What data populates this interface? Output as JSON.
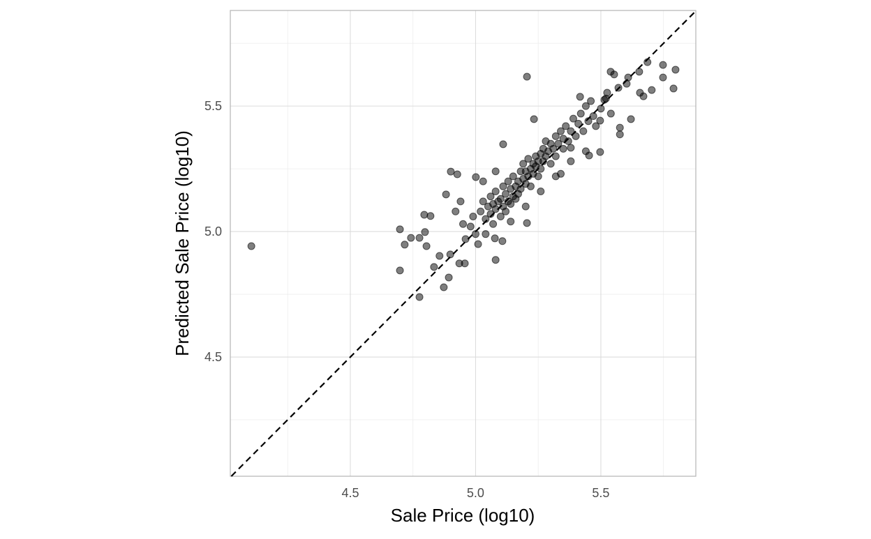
{
  "chart_data": {
    "type": "scatter",
    "x_label": "Sale Price (log10)",
    "y_label": "Predicted Sale Price (log10)",
    "xlim": [
      4.021,
      5.879
    ],
    "ylim": [
      4.025,
      5.881
    ],
    "xticks": [
      4.5,
      {
        "value": 5,
        "label": "5.0"
      },
      5.5
    ],
    "yticks": [
      4.5,
      {
        "value": 5,
        "label": "5.0"
      },
      5.5
    ],
    "x_minor_grid": [
      4.25,
      4.75,
      5.25,
      5.75
    ],
    "y_minor_grid": [
      4.25,
      4.75,
      5.25,
      5.75
    ],
    "grid": true,
    "diagonal": true,
    "series": [
      {
        "color": "#000000",
        "x": [
          4.105,
          5.205,
          4.698,
          4.698,
          4.776,
          4.873,
          4.893,
          4.795,
          4.82,
          4.882,
          4.901,
          4.927,
          4.717,
          4.742,
          4.776,
          4.798,
          4.804,
          4.834,
          4.856,
          4.899,
          4.935,
          4.957,
          5.08,
          5.107,
          5.077,
          5.205,
          5.001,
          5.11,
          5.233,
          5.417,
          5.748,
          5.798,
          5.79,
          5.748,
          5.686,
          5.653,
          5.609,
          5.539,
          5.553,
          5.67,
          5.703,
          5.656,
          5.62,
          5.576,
          5.576,
          5.497,
          5.497,
          5.514,
          5.525,
          5.57,
          5.603,
          5.453,
          5.38,
          5.02,
          5.03,
          5.04,
          5.05,
          5.06,
          5.06,
          5.07,
          5.08,
          5.08,
          5.09,
          5.1,
          5.1,
          5.11,
          5.11,
          5.12,
          5.12,
          5.13,
          5.13,
          5.14,
          5.14,
          5.15,
          5.15,
          5.16,
          5.16,
          5.17,
          5.17,
          5.18,
          5.18,
          5.19,
          5.19,
          5.2,
          5.2,
          5.21,
          5.21,
          5.22,
          5.22,
          5.23,
          5.23,
          5.24,
          5.24,
          5.25,
          5.25,
          5.26,
          5.26,
          5.27,
          5.27,
          5.28,
          5.28,
          5.29,
          5.3,
          5.3,
          5.31,
          5.32,
          5.32,
          5.33,
          5.34,
          5.35,
          5.35,
          5.36,
          5.37,
          5.38,
          5.39,
          5.4,
          5.41,
          5.42,
          5.43,
          5.44,
          5.45,
          5.46,
          5.47,
          5.48,
          5.5,
          5.52,
          5.54,
          4.98,
          4.96,
          4.99,
          5.0,
          4.95,
          5.01,
          5.04,
          5.07,
          5.14,
          5.2,
          5.26,
          5.32,
          5.38,
          5.03,
          5.08,
          4.92,
          4.94,
          5.34,
          5.44
        ],
        "y": [
          4.942,
          5.617,
          5.009,
          4.845,
          4.739,
          4.778,
          4.817,
          5.067,
          5.062,
          5.148,
          5.239,
          5.228,
          4.948,
          4.975,
          4.975,
          4.998,
          4.942,
          4.859,
          4.903,
          4.909,
          4.873,
          4.873,
          4.887,
          4.962,
          4.973,
          5.034,
          5.217,
          5.348,
          5.448,
          5.537,
          5.664,
          5.645,
          5.57,
          5.614,
          5.675,
          5.637,
          5.614,
          5.637,
          5.626,
          5.539,
          5.564,
          5.553,
          5.448,
          5.414,
          5.387,
          5.317,
          5.442,
          5.525,
          5.553,
          5.573,
          5.589,
          5.303,
          5.334,
          5.08,
          5.12,
          5.05,
          5.1,
          5.14,
          5.07,
          5.11,
          5.09,
          5.16,
          5.12,
          5.06,
          5.13,
          5.1,
          5.18,
          5.15,
          5.08,
          5.12,
          5.2,
          5.17,
          5.11,
          5.14,
          5.22,
          5.18,
          5.13,
          5.2,
          5.15,
          5.24,
          5.17,
          5.21,
          5.27,
          5.19,
          5.24,
          5.22,
          5.29,
          5.25,
          5.18,
          5.27,
          5.23,
          5.3,
          5.26,
          5.28,
          5.22,
          5.31,
          5.25,
          5.33,
          5.28,
          5.3,
          5.36,
          5.32,
          5.27,
          5.35,
          5.33,
          5.38,
          5.3,
          5.35,
          5.4,
          5.33,
          5.37,
          5.42,
          5.36,
          5.4,
          5.45,
          5.38,
          5.43,
          5.47,
          5.4,
          5.5,
          5.44,
          5.52,
          5.46,
          5.42,
          5.49,
          5.53,
          5.47,
          5.02,
          4.97,
          5.06,
          4.99,
          5.03,
          4.95,
          4.99,
          5.03,
          5.04,
          5.1,
          5.16,
          5.22,
          5.28,
          5.2,
          5.24,
          5.08,
          5.12,
          5.23,
          5.32
        ]
      }
    ]
  }
}
